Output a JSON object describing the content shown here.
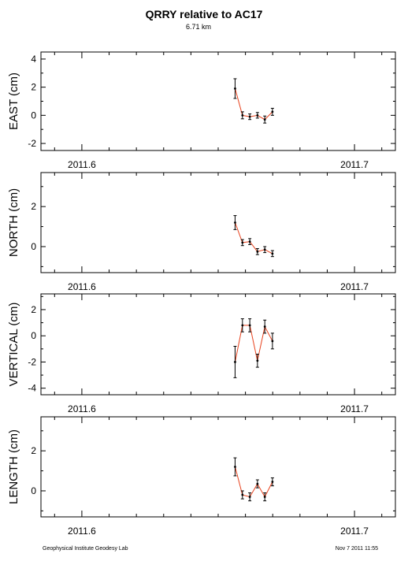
{
  "header": {
    "title": "QRRY relative to AC17",
    "subtitle": "6.71 km"
  },
  "footer": {
    "left": "Geophysical Institute Geodesy Lab",
    "right": "Nov 7 2011 11:55"
  },
  "colors": {
    "line": "#e8411c",
    "point": "#000000",
    "axis": "#000000"
  },
  "chart_data": [
    {
      "type": "line",
      "ylabel": "EAST (cm)",
      "xlim": [
        2011.585,
        2011.715
      ],
      "ylim": [
        -2.5,
        4.5
      ],
      "xticks": [
        2011.6,
        2011.7
      ],
      "xtick_labels": [
        "2011.6",
        "2011.7"
      ],
      "yticks": [
        -2,
        0,
        2,
        4
      ],
      "ytick_labels": [
        "-2",
        "0",
        "2",
        "4"
      ],
      "x": [
        2011.6562,
        2011.6589,
        2011.6616,
        2011.6644,
        2011.6671,
        2011.6699
      ],
      "y": [
        1.9,
        0.0,
        -0.1,
        0.0,
        -0.3,
        0.25
      ],
      "err": [
        0.7,
        0.25,
        0.2,
        0.2,
        0.25,
        0.25
      ]
    },
    {
      "type": "line",
      "ylabel": "NORTH (cm)",
      "xlim": [
        2011.585,
        2011.715
      ],
      "ylim": [
        -1.3,
        3.7
      ],
      "xticks": [
        2011.6,
        2011.7
      ],
      "xtick_labels": [
        "2011.6",
        "2011.7"
      ],
      "yticks": [
        0,
        2
      ],
      "ytick_labels": [
        "0",
        "2"
      ],
      "x": [
        2011.6562,
        2011.6589,
        2011.6616,
        2011.6644,
        2011.6671,
        2011.6699
      ],
      "y": [
        1.2,
        0.2,
        0.25,
        -0.25,
        -0.15,
        -0.35
      ],
      "err": [
        0.35,
        0.15,
        0.15,
        0.15,
        0.15,
        0.15
      ]
    },
    {
      "type": "line",
      "ylabel": "VERTICAL (cm)",
      "xlim": [
        2011.585,
        2011.715
      ],
      "ylim": [
        -4.5,
        3.2
      ],
      "xticks": [
        2011.6,
        2011.7
      ],
      "xtick_labels": [
        "2011.6",
        "2011.7"
      ],
      "yticks": [
        -4,
        -2,
        0,
        2
      ],
      "ytick_labels": [
        "-4",
        "-2",
        "0",
        "2"
      ],
      "x": [
        2011.6562,
        2011.6589,
        2011.6616,
        2011.6644,
        2011.6671,
        2011.6699
      ],
      "y": [
        -2.0,
        0.8,
        0.8,
        -1.9,
        0.7,
        -0.4
      ],
      "err": [
        1.2,
        0.5,
        0.5,
        0.5,
        0.5,
        0.6
      ]
    },
    {
      "type": "line",
      "ylabel": "LENGTH (cm)",
      "xlim": [
        2011.585,
        2011.715
      ],
      "ylim": [
        -1.3,
        3.7
      ],
      "xticks": [
        2011.6,
        2011.7
      ],
      "xtick_labels": [
        "2011.6",
        "2011.7"
      ],
      "yticks": [
        0,
        2
      ],
      "ytick_labels": [
        "0",
        "2"
      ],
      "x": [
        2011.6562,
        2011.6589,
        2011.6616,
        2011.6644,
        2011.6671,
        2011.6699
      ],
      "y": [
        1.2,
        -0.2,
        -0.3,
        0.35,
        -0.3,
        0.45
      ],
      "err": [
        0.45,
        0.2,
        0.2,
        0.2,
        0.2,
        0.2
      ]
    }
  ]
}
